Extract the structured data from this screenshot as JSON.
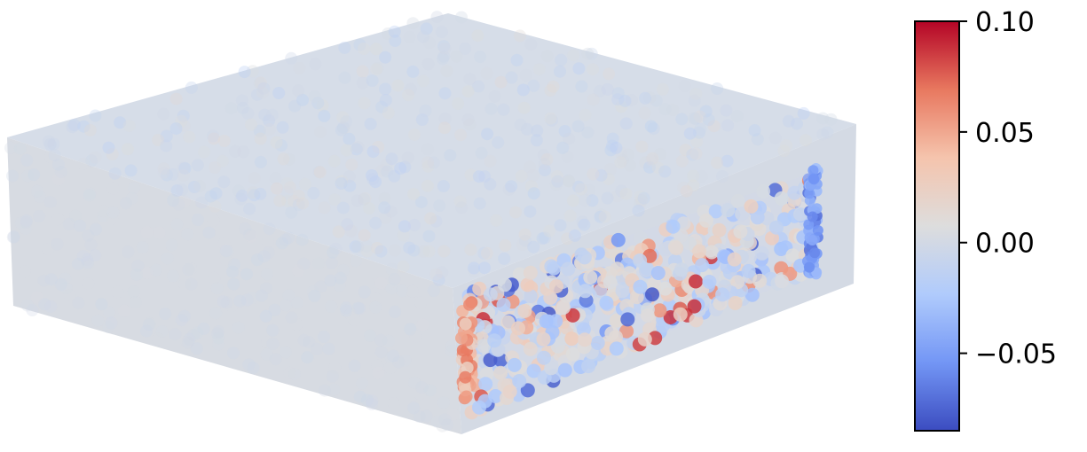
{
  "chart_data": {
    "type": "heatmap",
    "description_type": "3d-scatter-colored-particles",
    "title": "",
    "colormap": "coolwarm",
    "colormap_stops": [
      "#3b4cc0",
      "#7396f5",
      "#b0cbfc",
      "#dddddd",
      "#f5c4ad",
      "#e8785f",
      "#b40426"
    ],
    "colorbar": {
      "vmin": -0.085,
      "vmax": 0.1,
      "ticks": [
        0.1,
        0.05,
        0.0,
        -0.05
      ],
      "tick_labels": [
        "0.10",
        "0.05",
        "0.00",
        "−0.05"
      ]
    },
    "grid": false
  }
}
